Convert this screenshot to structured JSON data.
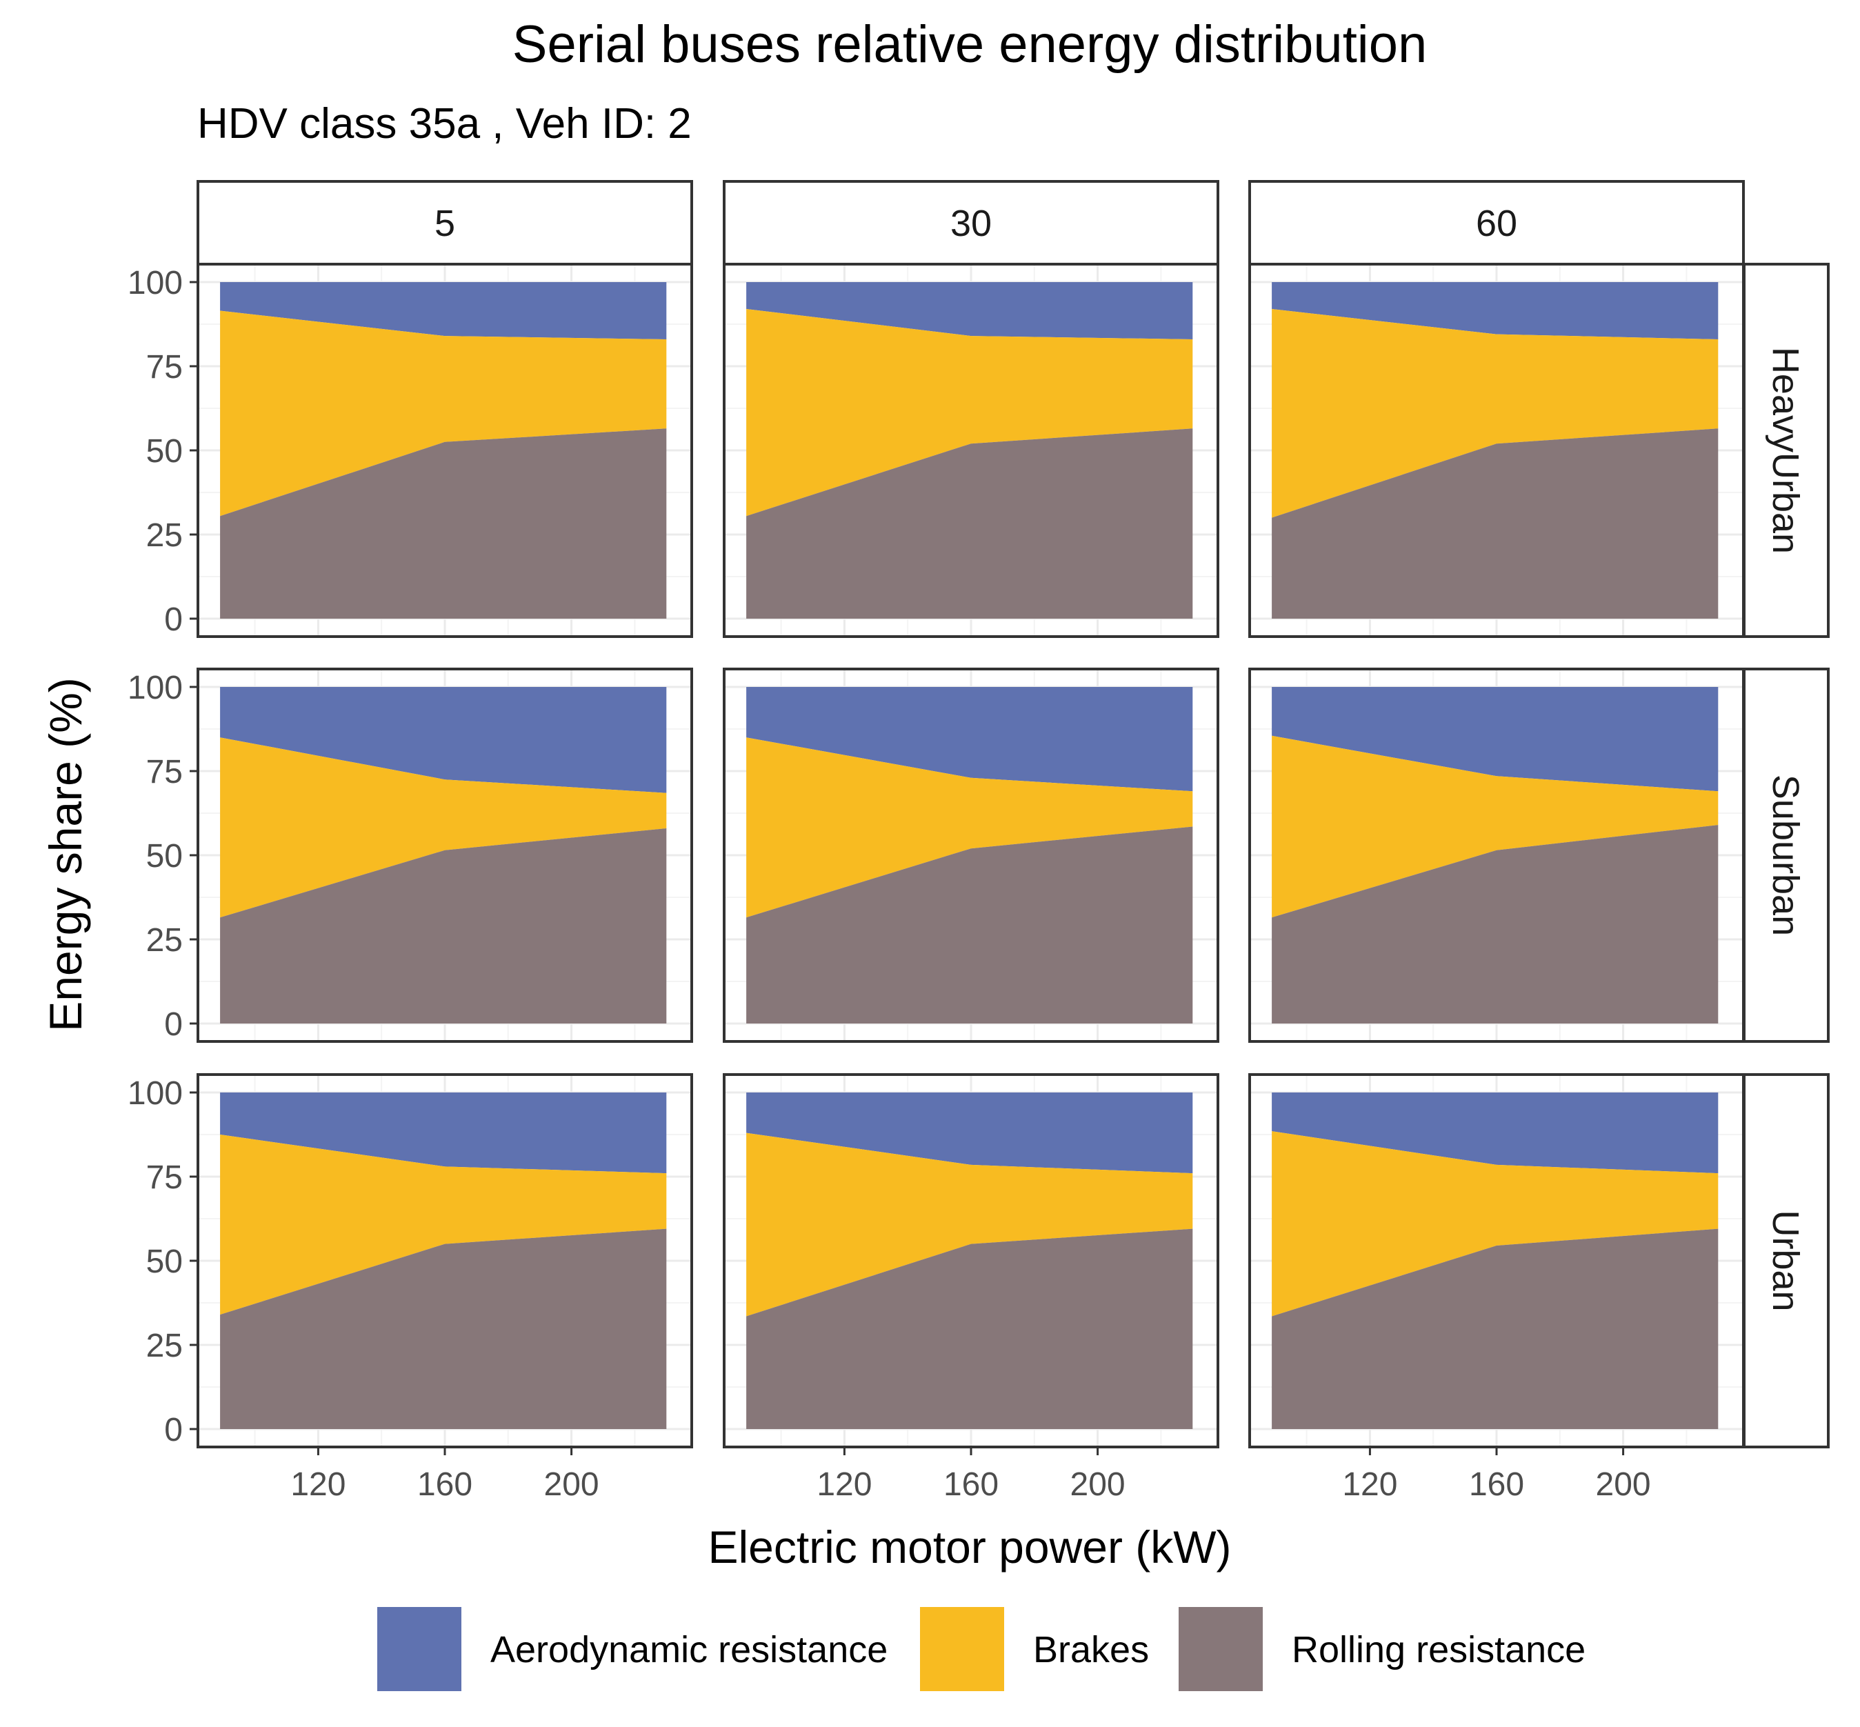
{
  "title": "Serial buses relative energy distribution",
  "subtitle": "HDV class 35a , Veh ID: 2",
  "colors": {
    "aero": "#5f72b0",
    "brakes": "#f8bb21",
    "rolling": "#877779",
    "strip_bg": "#ffffff",
    "frame": "#333333",
    "grid": "#ebebeb",
    "tick_text": "#4d4d4d"
  },
  "chart_data": {
    "type": "area",
    "stacked": true,
    "title": "Serial buses relative energy distribution",
    "subtitle": "HDV class 35a , Veh ID: 2",
    "xlabel": "Electric motor power (kW)",
    "ylabel": "Energy share (%)",
    "xlim": [
      82,
      238
    ],
    "ylim": [
      0,
      100
    ],
    "xticks": [
      120,
      160,
      200
    ],
    "yticks": [
      0,
      25,
      50,
      75,
      100
    ],
    "grid": true,
    "legend_position": "bottom",
    "facet_columns": [
      "5",
      "30",
      "60"
    ],
    "facet_rows": [
      "HeavyUrban",
      "Suburban",
      "Urban"
    ],
    "x": [
      89,
      160,
      230
    ],
    "series_order": [
      "Aerodynamic resistance",
      "Brakes",
      "Rolling resistance"
    ],
    "panels": [
      {
        "col": "5",
        "row": "HeavyUrban",
        "rolling": [
          30.5,
          52.5,
          56.5
        ],
        "brakes": [
          61.0,
          31.5,
          26.5
        ],
        "aero": [
          8.5,
          16.0,
          17.0
        ]
      },
      {
        "col": "30",
        "row": "HeavyUrban",
        "rolling": [
          30.5,
          52.0,
          56.5
        ],
        "brakes": [
          61.5,
          32.0,
          26.5
        ],
        "aero": [
          8.0,
          16.0,
          17.0
        ]
      },
      {
        "col": "60",
        "row": "HeavyUrban",
        "rolling": [
          30.0,
          52.0,
          56.5
        ],
        "brakes": [
          62.0,
          32.5,
          26.5
        ],
        "aero": [
          8.0,
          15.5,
          17.0
        ]
      },
      {
        "col": "5",
        "row": "Suburban",
        "rolling": [
          31.5,
          51.5,
          58.0
        ],
        "brakes": [
          53.5,
          21.0,
          10.5
        ],
        "aero": [
          15.0,
          27.5,
          31.5
        ]
      },
      {
        "col": "30",
        "row": "Suburban",
        "rolling": [
          31.5,
          52.0,
          58.5
        ],
        "brakes": [
          53.5,
          21.0,
          10.5
        ],
        "aero": [
          15.0,
          27.0,
          31.0
        ]
      },
      {
        "col": "60",
        "row": "Suburban",
        "rolling": [
          31.5,
          51.5,
          59.0
        ],
        "brakes": [
          54.0,
          22.0,
          10.0
        ],
        "aero": [
          14.5,
          26.5,
          31.0
        ]
      },
      {
        "col": "5",
        "row": "Urban",
        "rolling": [
          34.0,
          55.0,
          59.5
        ],
        "brakes": [
          53.5,
          23.0,
          16.5
        ],
        "aero": [
          12.5,
          22.0,
          24.0
        ]
      },
      {
        "col": "30",
        "row": "Urban",
        "rolling": [
          33.5,
          55.0,
          59.5
        ],
        "brakes": [
          54.5,
          23.5,
          16.5
        ],
        "aero": [
          12.0,
          21.5,
          24.0
        ]
      },
      {
        "col": "60",
        "row": "Urban",
        "rolling": [
          33.5,
          54.5,
          59.5
        ],
        "brakes": [
          55.0,
          24.0,
          16.5
        ],
        "aero": [
          11.5,
          21.5,
          24.0
        ]
      }
    ],
    "legend": [
      {
        "key": "aero",
        "label": "Aerodynamic resistance"
      },
      {
        "key": "brakes",
        "label": "Brakes"
      },
      {
        "key": "rolling",
        "label": "Rolling resistance"
      }
    ]
  }
}
